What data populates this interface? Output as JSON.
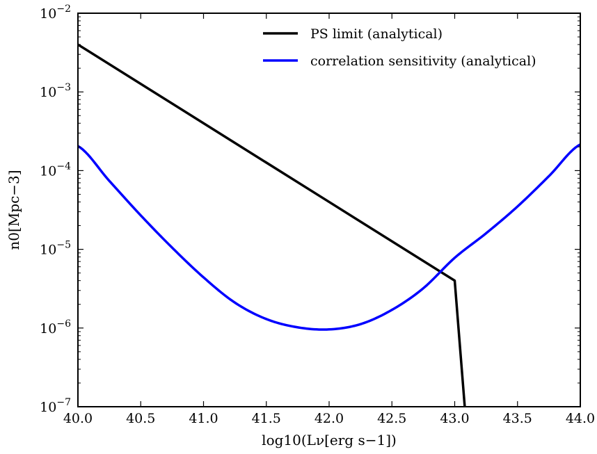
{
  "chart_data": {
    "type": "line",
    "xlabel": "log10(Lν[erg s−1])",
    "ylabel": "n0[Mpc−3]",
    "yscale": "log",
    "xlim": [
      40.0,
      44.0
    ],
    "ylim": [
      1e-07,
      0.01
    ],
    "grid": false,
    "legend_position": "top-right",
    "x_ticks": [
      "40.0",
      "40.5",
      "41.0",
      "41.5",
      "42.0",
      "42.5",
      "43.0",
      "43.5",
      "44.0"
    ],
    "y_ticks": [
      {
        "base": "10",
        "exp": "−7"
      },
      {
        "base": "10",
        "exp": "−6"
      },
      {
        "base": "10",
        "exp": "−5"
      },
      {
        "base": "10",
        "exp": "−4"
      },
      {
        "base": "10",
        "exp": "−3"
      },
      {
        "base": "10",
        "exp": "−2"
      }
    ],
    "series": [
      {
        "name": "PS limit (analytical)",
        "color": "#000000",
        "x": [
          40.0,
          41.0,
          42.0,
          43.0,
          43.08
        ],
        "y": [
          0.004,
          0.0004,
          4e-05,
          4e-06,
          1e-07
        ]
      },
      {
        "name": "correlation sensitivity (analytical)",
        "color": "#0000ff",
        "x": [
          40.0,
          40.25,
          40.5,
          40.75,
          41.0,
          41.25,
          41.5,
          41.75,
          42.0,
          42.25,
          42.5,
          42.75,
          43.0,
          43.25,
          43.5,
          43.75,
          44.0
        ],
        "y": [
          0.000205,
          7.4e-05,
          2.7e-05,
          1.05e-05,
          4.4e-06,
          2.1e-06,
          1.3e-06,
          1.02e-06,
          9.6e-07,
          1.12e-06,
          1.7e-06,
          3.2e-06,
          7.8e-06,
          1.6e-05,
          3.5e-05,
          8.5e-05,
          0.000215
        ]
      }
    ]
  }
}
